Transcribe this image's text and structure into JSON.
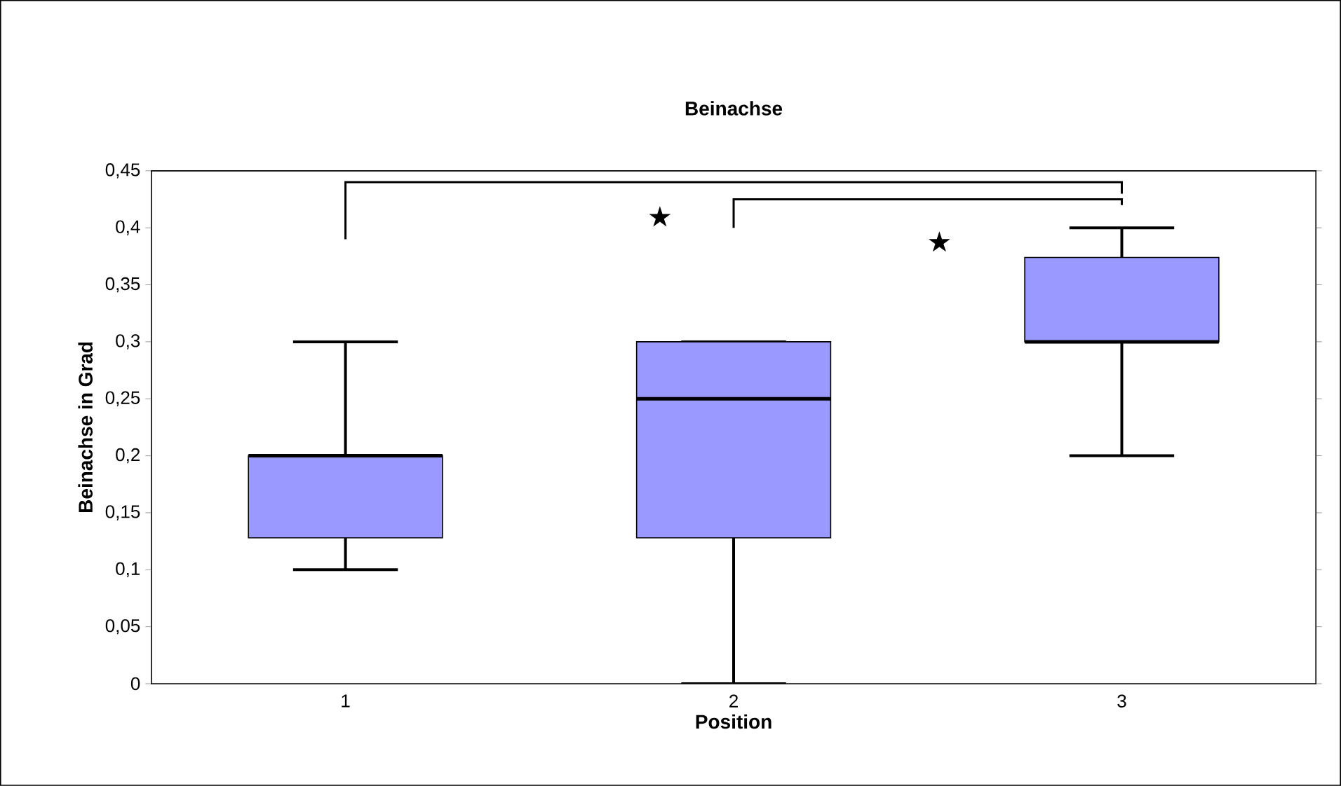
{
  "chart_data": {
    "type": "box",
    "title": "Beinachse",
    "xlabel": "Position",
    "ylabel": "Beinachse in Grad",
    "categories": [
      "1",
      "2",
      "3"
    ],
    "color": "#9999ff",
    "boxes": [
      {
        "low": 0.1,
        "q1": 0.128,
        "median": 0.2,
        "q3": 0.2,
        "high": 0.3
      },
      {
        "low": 0,
        "q1": 0.128,
        "median": 0.25,
        "q3": 0.3,
        "high": 0.3
      },
      {
        "low": 0.2,
        "q1": 0.3,
        "median": 0.3,
        "q3": 0.374,
        "high": 0.4
      }
    ],
    "ylim": [
      0,
      0.45
    ],
    "yticks": [
      {
        "value": 0,
        "label": "0"
      },
      {
        "value": 0.05,
        "label": "0,05"
      },
      {
        "value": 0.1,
        "label": "0,1"
      },
      {
        "value": 0.15,
        "label": "0,15"
      },
      {
        "value": 0.2,
        "label": "0,2"
      },
      {
        "value": 0.25,
        "label": "0,25"
      },
      {
        "value": 0.3,
        "label": "0,3"
      },
      {
        "value": 0.35,
        "label": "0,35"
      },
      {
        "value": 0.4,
        "label": "0,4"
      },
      {
        "value": 0.45,
        "label": "0,45"
      }
    ],
    "annotations": [
      "★",
      "★"
    ]
  }
}
